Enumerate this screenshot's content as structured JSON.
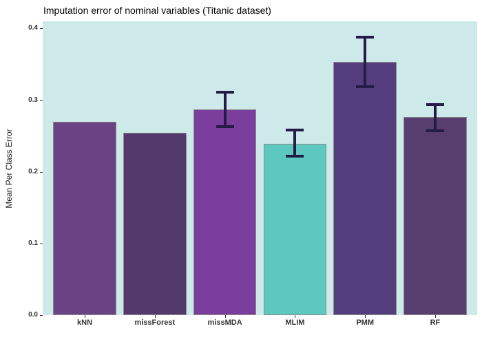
{
  "title": "Imputation error of nominal variables (Titanic dataset)",
  "chart_data": {
    "type": "bar",
    "title": "Imputation error of nominal variables (Titanic dataset)",
    "xlabel": "",
    "ylabel": "Mean Per Class Error",
    "ylim": [
      0,
      0.41
    ],
    "yticks": [
      0,
      0.1,
      0.2,
      0.3,
      0.4
    ],
    "ytick_labels": [
      "0.0",
      "0.1",
      "0.2",
      "0.3",
      "0.4"
    ],
    "grid": false,
    "legend": "none",
    "categories": [
      "kNN",
      "missForest",
      "missMDA",
      "MLIM",
      "PMM",
      "RF"
    ],
    "values": [
      0.27,
      0.254,
      0.287,
      0.239,
      0.353,
      0.277
    ],
    "error_bars": [
      null,
      null,
      {
        "low": 0.261,
        "high": 0.313
      },
      {
        "low": 0.22,
        "high": 0.26
      },
      {
        "low": 0.317,
        "high": 0.39
      },
      {
        "low": 0.255,
        "high": 0.296
      }
    ],
    "bar_colors": [
      "#6B4284",
      "#543A6C",
      "#7B3E9C",
      "#5CC8BF",
      "#543E7E",
      "#583D6F"
    ],
    "bar_border_color": "#8C8C8C",
    "error_bar_color": "#241C47",
    "panel_background": "#CEE9EA",
    "tick_color": "#333333"
  }
}
